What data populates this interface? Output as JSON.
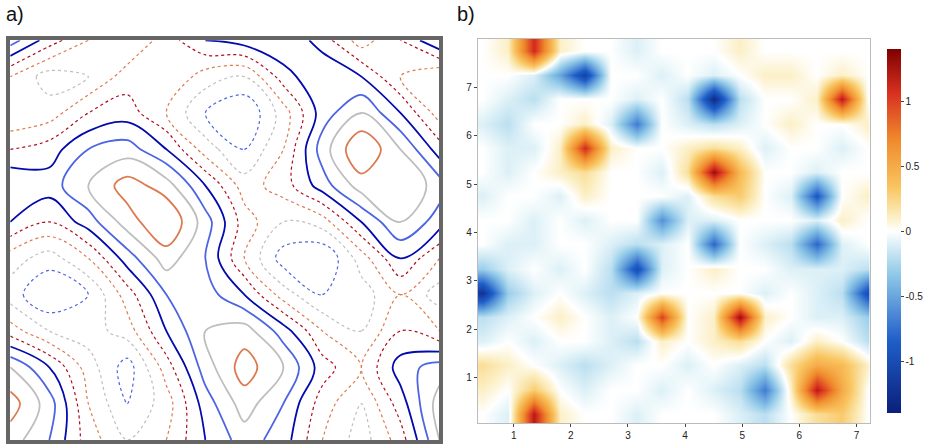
{
  "chart_data": [
    {
      "type": "contour",
      "title": "a)",
      "tick_labels": false,
      "levels": [
        -0.9,
        -0.7,
        -0.5,
        -0.3,
        -0.1,
        0.1,
        0.3,
        0.5,
        0.7,
        0.9
      ],
      "z": [
        [
          0.6,
          0.3,
          -0.2,
          -0.5,
          -0.3,
          0.1,
          0.4,
          0.2,
          -0.3,
          -0.6,
          -0.2,
          0.5
        ],
        [
          0.8,
          0.4,
          -0.3,
          -0.7,
          -0.4,
          0.2,
          0.6,
          0.3,
          -0.2,
          -0.5,
          0.0,
          0.6
        ],
        [
          0.5,
          0.1,
          -0.4,
          -0.8,
          -0.2,
          0.4,
          0.8,
          0.5,
          0.0,
          -0.3,
          0.2,
          0.4
        ],
        [
          -0.2,
          -0.5,
          -0.6,
          -0.4,
          0.1,
          0.5,
          0.6,
          0.2,
          -0.3,
          -0.5,
          -0.1,
          -0.3
        ],
        [
          -0.6,
          -0.9,
          -0.7,
          -0.2,
          0.3,
          0.4,
          0.1,
          -0.4,
          -0.7,
          -0.6,
          -0.3,
          -0.6
        ],
        [
          -0.4,
          -0.6,
          -0.3,
          0.2,
          0.6,
          0.3,
          -0.3,
          -0.8,
          -0.9,
          -0.4,
          0.1,
          -0.3
        ],
        [
          0.1,
          -0.1,
          0.2,
          0.6,
          0.9,
          0.4,
          -0.2,
          -0.5,
          -0.4,
          0.1,
          0.5,
          0.2
        ],
        [
          0.3,
          0.2,
          0.5,
          0.8,
          0.6,
          0.1,
          -0.4,
          -0.2,
          0.2,
          0.6,
          0.7,
          0.4
        ],
        [
          -0.1,
          0.0,
          0.3,
          0.4,
          0.1,
          -0.4,
          -0.7,
          -0.3,
          0.4,
          0.9,
          0.5,
          0.0
        ],
        [
          -0.5,
          -0.4,
          -0.1,
          0.0,
          -0.3,
          -0.7,
          -0.9,
          -0.4,
          0.2,
          0.5,
          0.1,
          -0.4
        ],
        [
          -0.3,
          -0.6,
          -0.5,
          -0.2,
          -0.1,
          -0.4,
          -0.5,
          0.0,
          0.3,
          0.1,
          -0.3,
          -0.5
        ],
        [
          0.4,
          0.0,
          -0.3,
          -0.5,
          -0.2,
          0.1,
          0.2,
          0.3,
          0.0,
          -0.4,
          -0.1,
          0.3
        ]
      ]
    },
    {
      "type": "heatmap",
      "title": "b)",
      "xlim": [
        0.37,
        7.23
      ],
      "ylim": [
        0.05,
        8.0
      ],
      "xticks": [
        1,
        2,
        3,
        4,
        5,
        6,
        7
      ],
      "yticks": [
        1,
        2,
        3,
        4,
        5,
        6,
        7
      ],
      "colorbar": {
        "range": [
          -1.4,
          1.4
        ],
        "ticks": [
          -1,
          -0.5,
          0,
          0.5,
          1
        ]
      },
      "x": [
        0.45,
        0.9,
        1.35,
        1.8,
        2.25,
        2.7,
        3.15,
        3.6,
        4.05,
        4.5,
        4.95,
        5.4,
        5.85,
        6.3,
        6.75,
        7.2
      ],
      "y": [
        0.25,
        0.75,
        1.25,
        1.75,
        2.25,
        2.75,
        3.25,
        3.75,
        4.25,
        4.75,
        5.25,
        5.75,
        6.25,
        6.75,
        7.25,
        7.75
      ],
      "z": [
        [
          0,
          -0.1,
          1.2,
          0.1,
          0,
          0,
          -0.1,
          0,
          0,
          0,
          -0.1,
          -0.2,
          0,
          0.2,
          0.3,
          0
        ],
        [
          0.1,
          0,
          0.3,
          0,
          -0.1,
          0,
          0,
          -0.1,
          0,
          -0.1,
          -0.2,
          -0.7,
          0.1,
          1.2,
          0.5,
          0
        ],
        [
          0.2,
          0.1,
          0,
          -0.1,
          -0.2,
          -0.1,
          0,
          0,
          -0.1,
          0,
          -0.1,
          -0.2,
          0.2,
          0.5,
          0.4,
          0.1
        ],
        [
          -0.1,
          0,
          -0.1,
          0,
          0,
          -0.1,
          -0.2,
          0.1,
          0,
          0.1,
          0.2,
          0,
          -0.1,
          0.1,
          0,
          -0.2
        ],
        [
          -0.2,
          -0.1,
          0,
          0.1,
          0,
          -0.1,
          0,
          1.0,
          0,
          0.1,
          1.3,
          0.1,
          0,
          -0.1,
          -0.1,
          -0.3
        ],
        [
          -1.2,
          -0.3,
          -0.1,
          0,
          -0.1,
          -0.2,
          -0.1,
          0,
          0,
          0,
          0,
          -0.1,
          0,
          -0.1,
          -0.2,
          -1.0
        ],
        [
          -0.3,
          -0.1,
          0,
          -0.1,
          0,
          -0.2,
          -1.0,
          -0.1,
          0,
          0.1,
          0,
          0,
          -0.1,
          -0.1,
          -0.1,
          -0.2
        ],
        [
          0,
          -0.1,
          -0.1,
          0,
          0,
          -0.1,
          -0.2,
          -0.1,
          0,
          -0.8,
          0,
          -0.1,
          -0.2,
          -0.8,
          -0.1,
          0
        ],
        [
          0,
          0,
          -0.1,
          0,
          -0.1,
          0,
          0,
          -0.6,
          -0.1,
          -0.1,
          0,
          0,
          0,
          -0.1,
          0.1,
          0
        ],
        [
          -0.1,
          0,
          0,
          -0.1,
          0.1,
          0,
          0,
          0,
          -0.1,
          0.2,
          0.3,
          0,
          -0.1,
          -0.9,
          0,
          0.1
        ],
        [
          0,
          -0.1,
          0,
          0.1,
          0.2,
          0,
          0,
          -0.1,
          0.2,
          1.3,
          0.4,
          0,
          0,
          -0.1,
          0,
          0
        ],
        [
          0,
          -0.1,
          -0.1,
          0.1,
          1.1,
          0.1,
          0,
          0,
          0.1,
          0.2,
          0.1,
          -0.1,
          0,
          0,
          -0.1,
          0
        ],
        [
          -0.1,
          -0.2,
          0,
          0,
          0.1,
          -0.1,
          -0.7,
          0,
          -0.1,
          -0.2,
          -0.1,
          0,
          0.1,
          0,
          0,
          0.1
        ],
        [
          0,
          -0.1,
          -0.2,
          0,
          0,
          0,
          -0.1,
          0,
          -0.2,
          -1.3,
          -0.2,
          0,
          0,
          0.1,
          1.2,
          0
        ],
        [
          0,
          0,
          -0.1,
          -0.5,
          -1.1,
          0,
          0,
          -0.1,
          0,
          -0.1,
          0,
          0.1,
          0.1,
          0,
          0.1,
          0
        ],
        [
          0,
          0.1,
          1.1,
          0.1,
          0,
          0,
          -0.1,
          0,
          0,
          0,
          0.1,
          0,
          0,
          0,
          0,
          0
        ]
      ]
    }
  ]
}
